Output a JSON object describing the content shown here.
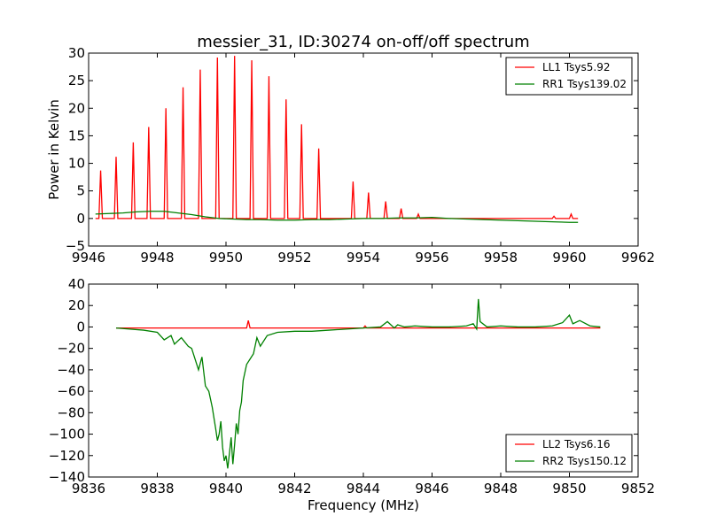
{
  "figure": {
    "title": "messier_31, ID:30274 on-off/off spectrum",
    "background": "#ffffff"
  },
  "chart_data": [
    {
      "type": "line",
      "title": "messier_31, ID:30274 on-off/off spectrum",
      "xlabel": "",
      "ylabel": "Power in Kelvin",
      "xlim": [
        9946,
        9962
      ],
      "ylim": [
        -5,
        30
      ],
      "xticks": [
        9946,
        9948,
        9950,
        9952,
        9954,
        9956,
        9958,
        9960,
        9962
      ],
      "yticks": [
        -5,
        0,
        5,
        10,
        15,
        20,
        25,
        30
      ],
      "xtick_labels": [
        "9946",
        "9948",
        "9950",
        "9952",
        "9954",
        "9956",
        "9958",
        "9960",
        "9962"
      ],
      "ytick_labels": [
        "−5",
        "0",
        "5",
        "10",
        "15",
        "20",
        "25",
        "30"
      ],
      "grid": false,
      "legend_position": "top-right",
      "series": [
        {
          "name": "LL1 Tsys5.92",
          "color": "#ff0000",
          "x": [
            9946.2,
            9946.3,
            9946.35,
            9946.4,
            9946.75,
            9946.8,
            9946.85,
            9947.25,
            9947.3,
            9947.35,
            9947.7,
            9947.75,
            9947.8,
            9948.2,
            9948.25,
            9948.3,
            9948.7,
            9948.75,
            9948.8,
            9949.2,
            9949.25,
            9949.3,
            9949.7,
            9949.75,
            9949.8,
            9950.2,
            9950.25,
            9950.3,
            9950.7,
            9950.75,
            9950.8,
            9951.2,
            9951.25,
            9951.3,
            9951.7,
            9951.75,
            9951.8,
            9952.15,
            9952.2,
            9952.25,
            9952.65,
            9952.7,
            9952.75,
            9953.65,
            9953.7,
            9953.75,
            9954.1,
            9954.15,
            9954.2,
            9954.6,
            9954.65,
            9954.7,
            9955.05,
            9955.1,
            9955.15,
            9955.55,
            9955.6,
            9955.65,
            9959.5,
            9959.55,
            9959.6,
            9960.0,
            9960.05,
            9960.1,
            9960.25
          ],
          "y": [
            0,
            0,
            8.7,
            0,
            0,
            11.2,
            0,
            0,
            13.8,
            0,
            0,
            16.6,
            0,
            0,
            20.0,
            0,
            0,
            23.8,
            0,
            0,
            27.0,
            0,
            0,
            29.2,
            0,
            0,
            29.5,
            0,
            0,
            28.7,
            0,
            0,
            25.8,
            0,
            0,
            21.6,
            0,
            0,
            17.1,
            0,
            0,
            12.7,
            0,
            0,
            6.7,
            0,
            0,
            4.7,
            0,
            0,
            3.1,
            0,
            0,
            1.8,
            0,
            0,
            0.8,
            0,
            0,
            0.4,
            0,
            0,
            0.8,
            0,
            0
          ]
        },
        {
          "name": "RR1 Tsys139.02",
          "color": "#008000",
          "x": [
            9946.2,
            9946.6,
            9947.0,
            9947.4,
            9947.8,
            9948.2,
            9948.6,
            9949.0,
            9949.4,
            9949.8,
            9950.2,
            9950.6,
            9951.0,
            9951.5,
            9952.0,
            9952.5,
            9953.0,
            9953.5,
            9954.0,
            9954.5,
            9955.0,
            9955.5,
            9956.0,
            9956.5,
            9957.0,
            9957.5,
            9958.0,
            9958.5,
            9959.0,
            9959.5,
            9960.0,
            9960.25
          ],
          "y": [
            0.8,
            0.9,
            1.0,
            1.2,
            1.3,
            1.3,
            1.0,
            0.7,
            0.3,
            0.0,
            -0.1,
            -0.2,
            -0.2,
            -0.3,
            -0.3,
            -0.2,
            -0.2,
            -0.1,
            0.0,
            0.0,
            0.1,
            0.1,
            0.2,
            0.0,
            -0.1,
            -0.2,
            -0.3,
            -0.4,
            -0.5,
            -0.6,
            -0.7,
            -0.7
          ]
        }
      ]
    },
    {
      "type": "line",
      "title": "",
      "xlabel": "Frequency (MHz)",
      "ylabel": "",
      "xlim": [
        9836,
        9852
      ],
      "ylim": [
        -140,
        40
      ],
      "xticks": [
        9836,
        9838,
        9840,
        9842,
        9844,
        9846,
        9848,
        9850,
        9852
      ],
      "yticks": [
        -140,
        -120,
        -100,
        -80,
        -60,
        -40,
        -20,
        0,
        20,
        40
      ],
      "xtick_labels": [
        "9836",
        "9838",
        "9840",
        "9842",
        "9844",
        "9846",
        "9848",
        "9850",
        "9852"
      ],
      "ytick_labels": [
        "−140",
        "−120",
        "−100",
        "−80",
        "−60",
        "−40",
        "−20",
        "0",
        "20",
        "40"
      ],
      "grid": false,
      "legend_position": "bottom-right",
      "series": [
        {
          "name": "LL2 Tsys6.16",
          "color": "#ff0000",
          "x": [
            9836.8,
            9840.6,
            9840.65,
            9840.7,
            9840.75,
            9844.0,
            9844.05,
            9844.1,
            9850.9
          ],
          "y": [
            -1,
            -1,
            6,
            -1,
            -1,
            -1,
            1,
            -1,
            -1
          ]
        },
        {
          "name": "RR2 Tsys150.12",
          "color": "#008000",
          "x": [
            9836.8,
            9837.2,
            9837.6,
            9838.0,
            9838.2,
            9838.4,
            9838.5,
            9838.7,
            9838.9,
            9839.0,
            9839.1,
            9839.2,
            9839.3,
            9839.4,
            9839.5,
            9839.6,
            9839.7,
            9839.75,
            9839.8,
            9839.85,
            9839.9,
            9839.95,
            9840.0,
            9840.05,
            9840.1,
            9840.15,
            9840.2,
            9840.25,
            9840.3,
            9840.35,
            9840.4,
            9840.45,
            9840.5,
            9840.6,
            9840.7,
            9840.8,
            9840.9,
            9841.0,
            9841.2,
            9841.5,
            9842.0,
            9842.5,
            9843.0,
            9843.5,
            9844.0,
            9844.5,
            9844.7,
            9844.9,
            9845.0,
            9845.2,
            9845.5,
            9846.0,
            9846.5,
            9847.0,
            9847.2,
            9847.3,
            9847.35,
            9847.4,
            9847.6,
            9848.0,
            9848.5,
            9849.0,
            9849.5,
            9849.8,
            9850.0,
            9850.1,
            9850.3,
            9850.6,
            9850.9
          ],
          "y": [
            -1,
            -2,
            -3,
            -5,
            -12,
            -8,
            -16,
            -10,
            -18,
            -20,
            -30,
            -40,
            -28,
            -55,
            -60,
            -75,
            -95,
            -106,
            -100,
            -88,
            -112,
            -125,
            -120,
            -132,
            -118,
            -103,
            -128,
            -110,
            -90,
            -100,
            -78,
            -70,
            -50,
            -35,
            -30,
            -25,
            -10,
            -18,
            -8,
            -5,
            -4,
            -4,
            -3,
            -2,
            -1,
            0,
            5,
            -1,
            2,
            0,
            1,
            0,
            0,
            1,
            3,
            -2,
            26,
            5,
            0,
            1,
            0,
            0,
            1,
            4,
            11,
            3,
            6,
            1,
            0
          ]
        }
      ]
    }
  ]
}
